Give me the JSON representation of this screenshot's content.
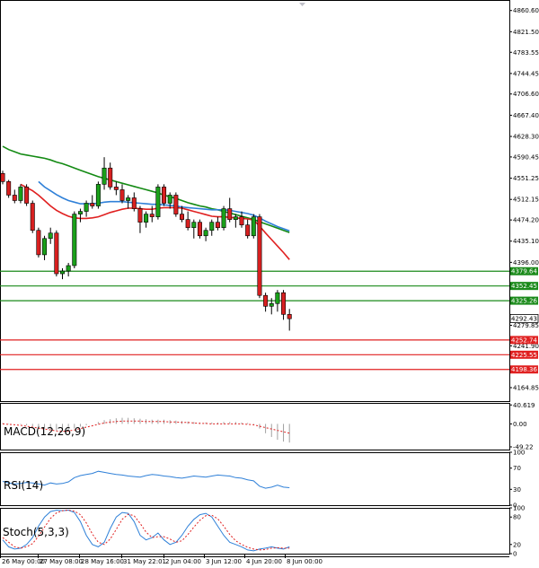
{
  "chart_data": {
    "type": "candlestick",
    "instrument": "",
    "price_axis": {
      "labels": [
        "4860.60",
        "4821.50",
        "4783.55",
        "4744.45",
        "4706.60",
        "4667.40",
        "4628.30",
        "4590.45",
        "4551.25",
        "4512.15",
        "4474.20",
        "4435.10",
        "4396.00",
        "4279.85",
        "4241.90",
        "4164.85"
      ],
      "ylim": [
        4140,
        4880
      ]
    },
    "x_axis": {
      "labels": [
        "26 May 00:00",
        "27 May 08:00",
        "28 May 16:00",
        "31 May 22:01",
        "2 Jun 04:00",
        "3 Jun 12:00",
        "4 Jun 20:00",
        "8 Jun 00:00"
      ]
    },
    "current_price": "4292.43",
    "horizontal_levels": [
      {
        "value": 4379.64,
        "label": "4379.64",
        "color": "#1a8a1a"
      },
      {
        "value": 4352.45,
        "label": "4352.45",
        "color": "#1a8a1a"
      },
      {
        "value": 4325.26,
        "label": "4325.26",
        "color": "#1a8a1a"
      },
      {
        "value": 4252.74,
        "label": "4252.74",
        "color": "#e02020"
      },
      {
        "value": 4225.55,
        "label": "4225.55",
        "color": "#e02020"
      },
      {
        "value": 4198.36,
        "label": "4198.36",
        "color": "#e02020"
      }
    ],
    "candles": [
      [
        4560,
        4565,
        4540,
        4545
      ],
      [
        4545,
        4548,
        4515,
        4520
      ],
      [
        4520,
        4530,
        4505,
        4510
      ],
      [
        4510,
        4540,
        4505,
        4535
      ],
      [
        4535,
        4540,
        4500,
        4505
      ],
      [
        4505,
        4510,
        4450,
        4455
      ],
      [
        4455,
        4460,
        4405,
        4410
      ],
      [
        4410,
        4445,
        4400,
        4440
      ],
      [
        4440,
        4460,
        4430,
        4450
      ],
      [
        4450,
        4455,
        4370,
        4375
      ],
      [
        4375,
        4385,
        4365,
        4380
      ],
      [
        4380,
        4395,
        4370,
        4390
      ],
      [
        4390,
        4490,
        4385,
        4485
      ],
      [
        4485,
        4495,
        4470,
        4490
      ],
      [
        4490,
        4510,
        4480,
        4505
      ],
      [
        4505,
        4520,
        4495,
        4500
      ],
      [
        4500,
        4545,
        4495,
        4540
      ],
      [
        4540,
        4590,
        4530,
        4570
      ],
      [
        4570,
        4580,
        4530,
        4535
      ],
      [
        4535,
        4545,
        4520,
        4530
      ],
      [
        4530,
        4540,
        4505,
        4510
      ],
      [
        4510,
        4520,
        4495,
        4515
      ],
      [
        4515,
        4525,
        4490,
        4495
      ],
      [
        4495,
        4500,
        4450,
        4470
      ],
      [
        4470,
        4490,
        4460,
        4485
      ],
      [
        4485,
        4500,
        4470,
        4480
      ],
      [
        4480,
        4540,
        4475,
        4535
      ],
      [
        4535,
        4540,
        4500,
        4505
      ],
      [
        4505,
        4525,
        4495,
        4520
      ],
      [
        4520,
        4525,
        4480,
        4485
      ],
      [
        4485,
        4500,
        4470,
        4475
      ],
      [
        4475,
        4490,
        4455,
        4460
      ],
      [
        4460,
        4475,
        4440,
        4470
      ],
      [
        4470,
        4475,
        4440,
        4445
      ],
      [
        4445,
        4460,
        4435,
        4455
      ],
      [
        4455,
        4475,
        4445,
        4470
      ],
      [
        4470,
        4480,
        4455,
        4460
      ],
      [
        4460,
        4500,
        4455,
        4495
      ],
      [
        4495,
        4515,
        4470,
        4475
      ],
      [
        4475,
        4485,
        4460,
        4480
      ],
      [
        4480,
        4490,
        4460,
        4465
      ],
      [
        4465,
        4475,
        4440,
        4445
      ],
      [
        4445,
        4485,
        4440,
        4480
      ],
      [
        4480,
        4485,
        4330,
        4335
      ],
      [
        4335,
        4340,
        4305,
        4315
      ],
      [
        4315,
        4330,
        4300,
        4320
      ],
      [
        4320,
        4345,
        4305,
        4340
      ],
      [
        4340,
        4345,
        4290,
        4300
      ],
      [
        4300,
        4310,
        4270,
        4292
      ]
    ],
    "moving_averages": [
      {
        "name": "",
        "color": "#138a13",
        "values": [
          4610,
          4604,
          4600,
          4596,
          4594,
          4592,
          4590,
          4588,
          4585,
          4581,
          4578,
          4574,
          4570,
          4566,
          4562,
          4558,
          4554,
          4551,
          4548,
          4545,
          4542,
          4539,
          4536,
          4533,
          4530,
          4527,
          4524,
          4520,
          4517,
          4514,
          4510,
          4506,
          4503,
          4500,
          4498,
          4495,
          4493,
          4490,
          4487,
          4484,
          4481,
          4478,
          4475,
          4471,
          4467,
          4463,
          4459,
          4455,
          4451
        ]
      },
      {
        "name": "",
        "color": "#2f80d8",
        "values": [
          null,
          null,
          null,
          null,
          null,
          null,
          4545,
          4535,
          4528,
          4521,
          4515,
          4510,
          4507,
          4504,
          4504,
          4504,
          4505,
          4507,
          4508,
          4508,
          4508,
          4507,
          4506,
          4505,
          4504,
          4503,
          4503,
          4502,
          4501,
          4500,
          4498,
          4497,
          4496,
          4495,
          4494,
          4493,
          4493,
          4493,
          4492,
          4490,
          4488,
          4486,
          4483,
          4478,
          4472,
          4467,
          4462,
          4458,
          4454
        ]
      },
      {
        "name": "",
        "color": "#e02020",
        "values": [
          null,
          null,
          null,
          4540,
          4534,
          4528,
          4520,
          4510,
          4500,
          4492,
          4486,
          4481,
          4478,
          4477,
          4477,
          4478,
          4480,
          4484,
          4488,
          4491,
          4494,
          4496,
          4496,
          4495,
          4494,
          4494,
          4496,
          4497,
          4497,
          4497,
          4496,
          4493,
          4490,
          4487,
          4484,
          4481,
          4480,
          4480,
          4479,
          4478,
          4477,
          4476,
          4474,
          4463,
          4450,
          4438,
          4426,
          4414,
          4401
        ]
      }
    ],
    "macd": {
      "title": "MACD(12,26,9)",
      "axis_labels": [
        "40.619",
        "0.00",
        "-49.22"
      ],
      "ylim": [
        -55,
        45
      ],
      "histogram": [
        2,
        1,
        0,
        -1,
        -3,
        -5,
        -8,
        -10,
        -12,
        -14,
        -14,
        -12,
        -10,
        -6,
        -3,
        0,
        4,
        8,
        10,
        12,
        13,
        13,
        12,
        11,
        10,
        9,
        9,
        9,
        8,
        7,
        6,
        5,
        4,
        3,
        3,
        3,
        3,
        4,
        4,
        4,
        3,
        2,
        1,
        -10,
        -20,
        -28,
        -34,
        -38,
        -40
      ],
      "signal": [
        0,
        -1,
        -2,
        -3,
        -5,
        -7,
        -9,
        -11,
        -13,
        -15,
        -16,
        -15,
        -13,
        -10,
        -7,
        -4,
        -1,
        2,
        4,
        5,
        6,
        6,
        6,
        6,
        5,
        5,
        5,
        5,
        4,
        4,
        3,
        3,
        2,
        1,
        1,
        0,
        0,
        0,
        0,
        0,
        0,
        -1,
        -2,
        -5,
        -8,
        -11,
        -14,
        -17,
        -20
      ]
    },
    "rsi": {
      "title": "RSI(14)",
      "axis_labels": [
        "100",
        "70",
        "30",
        "0"
      ],
      "ylim": [
        0,
        100
      ],
      "values": [
        45,
        42,
        40,
        41,
        43,
        42,
        40,
        38,
        42,
        40,
        41,
        44,
        52,
        56,
        58,
        60,
        64,
        62,
        60,
        58,
        57,
        55,
        54,
        53,
        56,
        58,
        57,
        55,
        54,
        52,
        51,
        53,
        55,
        54,
        53,
        55,
        57,
        56,
        55,
        52,
        51,
        48,
        46,
        36,
        32,
        34,
        38,
        34,
        33
      ]
    },
    "stoch": {
      "title": "Stoch(5,3,3)",
      "axis_labels": [
        "100",
        "80",
        "20",
        "0"
      ],
      "ylim": [
        0,
        100
      ],
      "k": [
        30,
        15,
        10,
        12,
        20,
        35,
        60,
        80,
        92,
        95,
        94,
        95,
        90,
        70,
        40,
        20,
        15,
        25,
        55,
        80,
        90,
        88,
        70,
        40,
        30,
        35,
        45,
        30,
        20,
        25,
        40,
        60,
        75,
        85,
        88,
        80,
        60,
        40,
        25,
        20,
        15,
        8,
        6,
        10,
        12,
        15,
        12,
        10,
        15
      ],
      "d": [
        35,
        25,
        15,
        12,
        15,
        22,
        38,
        58,
        77,
        89,
        94,
        95,
        93,
        85,
        67,
        43,
        25,
        20,
        32,
        53,
        75,
        86,
        83,
        66,
        47,
        35,
        37,
        37,
        32,
        25,
        28,
        42,
        58,
        73,
        83,
        84,
        76,
        60,
        42,
        28,
        20,
        14,
        10,
        8,
        9,
        12,
        13,
        12,
        12
      ]
    }
  }
}
